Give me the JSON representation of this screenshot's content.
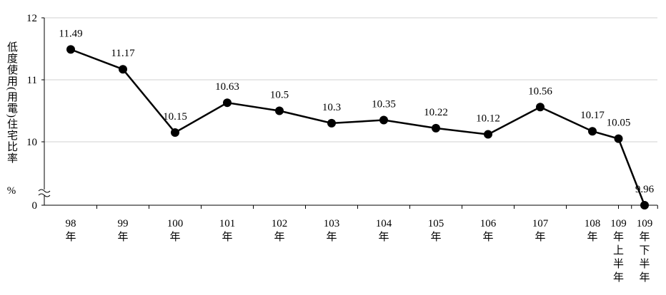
{
  "chart_data": {
    "type": "line",
    "y_label": "低度使用(用電)住宅比率",
    "y_unit": "%",
    "categories": [
      [
        "98",
        "年"
      ],
      [
        "99",
        "年"
      ],
      [
        "100",
        "年"
      ],
      [
        "101",
        "年"
      ],
      [
        "102",
        "年"
      ],
      [
        "103",
        "年"
      ],
      [
        "104",
        "年"
      ],
      [
        "105",
        "年"
      ],
      [
        "106",
        "年"
      ],
      [
        "107",
        "年"
      ],
      [
        "108",
        "年"
      ],
      [
        "109",
        "年",
        "上",
        "半",
        "年"
      ],
      [
        "109",
        "年",
        "下",
        "半",
        "年"
      ]
    ],
    "values": [
      11.49,
      11.17,
      10.15,
      10.63,
      10.5,
      10.3,
      10.35,
      10.22,
      10.12,
      10.56,
      10.17,
      10.05,
      9.96
    ],
    "color": "#000000",
    "ylim": [
      0,
      12
    ],
    "yticks": [
      0,
      10,
      11,
      12
    ],
    "axis_break": true,
    "grid": true
  }
}
